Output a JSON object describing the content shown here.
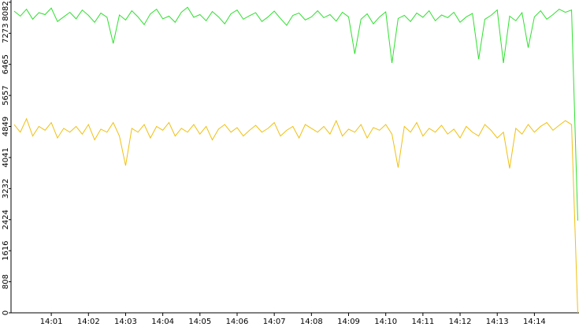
{
  "chart_data": {
    "type": "line",
    "x": [
      "14:00:00",
      "14:00:10",
      "14:00:20",
      "14:00:30",
      "14:00:40",
      "14:00:50",
      "14:01:00",
      "14:01:10",
      "14:01:20",
      "14:01:30",
      "14:01:40",
      "14:01:50",
      "14:02:00",
      "14:02:10",
      "14:02:20",
      "14:02:30",
      "14:02:40",
      "14:02:50",
      "14:03:00",
      "14:03:10",
      "14:03:20",
      "14:03:30",
      "14:03:40",
      "14:03:50",
      "14:04:00",
      "14:04:10",
      "14:04:20",
      "14:04:30",
      "14:04:40",
      "14:04:50",
      "14:05:00",
      "14:05:10",
      "14:05:20",
      "14:05:30",
      "14:05:40",
      "14:05:50",
      "14:06:00",
      "14:06:10",
      "14:06:20",
      "14:06:30",
      "14:06:40",
      "14:06:50",
      "14:07:00",
      "14:07:10",
      "14:07:20",
      "14:07:30",
      "14:07:40",
      "14:07:50",
      "14:08:00",
      "14:08:10",
      "14:08:20",
      "14:08:30",
      "14:08:40",
      "14:08:50",
      "14:09:00",
      "14:09:10",
      "14:09:20",
      "14:09:30",
      "14:09:40",
      "14:09:50",
      "14:10:00",
      "14:10:10",
      "14:10:20",
      "14:10:30",
      "14:10:40",
      "14:10:50",
      "14:11:00",
      "14:11:10",
      "14:11:20",
      "14:11:30",
      "14:11:40",
      "14:11:50",
      "14:12:00",
      "14:12:10",
      "14:12:20",
      "14:12:30",
      "14:12:40",
      "14:12:50",
      "14:13:00",
      "14:13:10",
      "14:13:20",
      "14:13:30",
      "14:13:40",
      "14:13:50",
      "14:14:00",
      "14:14:10",
      "14:14:20",
      "14:14:30",
      "14:14:40",
      "14:14:50",
      "14:15:00",
      "14:15:10"
    ],
    "series": [
      {
        "color": "#2ee02e",
        "values": [
          7850,
          7720,
          7900,
          7640,
          7810,
          7760,
          7930,
          7580,
          7700,
          7820,
          7650,
          7880,
          7740,
          7560,
          7800,
          7690,
          7010,
          7750,
          7620,
          7860,
          7700,
          7500,
          7780,
          7900,
          7650,
          7720,
          7560,
          7820,
          7950,
          7690,
          7760,
          7600,
          7840,
          7700,
          7520,
          7780,
          7880,
          7640,
          7730,
          7810,
          7580,
          7700,
          7850,
          7660,
          7480,
          7740,
          7800,
          7620,
          7700,
          7860,
          7680,
          7760,
          7590,
          7820,
          7700,
          6740,
          7640,
          7780,
          7520,
          7700,
          7830,
          6500,
          7660,
          7740,
          7580,
          7800,
          7690,
          7860,
          7600,
          7750,
          7680,
          7820,
          7560,
          7700,
          7790,
          6600,
          7640,
          7740,
          7880,
          6500,
          7720,
          7600,
          7810,
          6900,
          7700,
          7860,
          7640,
          7760,
          7900,
          7820,
          7880,
          2400
        ]
      },
      {
        "color": "#f0c010",
        "values": [
          4900,
          4700,
          5050,
          4600,
          4850,
          4750,
          4950,
          4550,
          4800,
          4700,
          4850,
          4650,
          4900,
          4500,
          4780,
          4700,
          4950,
          4600,
          3830,
          4800,
          4700,
          4900,
          4550,
          4850,
          4750,
          4950,
          4600,
          4800,
          4700,
          4900,
          4650,
          4850,
          4500,
          4780,
          4900,
          4700,
          4820,
          4600,
          4750,
          4880,
          4700,
          4800,
          4950,
          4600,
          4750,
          4850,
          4550,
          4900,
          4800,
          4700,
          4850,
          4650,
          5000,
          4600,
          4780,
          4700,
          4900,
          4550,
          4820,
          4750,
          4900,
          4650,
          3780,
          4850,
          4700,
          4950,
          4600,
          4800,
          4700,
          4880,
          4650,
          4780,
          4550,
          4850,
          4700,
          4600,
          4900,
          4750,
          4550,
          4700,
          3760,
          4800,
          4650,
          4900,
          4700,
          4850,
          4950,
          4750,
          4880,
          5000,
          4900,
          0
        ]
      }
    ],
    "xlim": [
      "13:59:55",
      "14:15:12"
    ],
    "xticks": [
      {
        "value": "14:01:00",
        "label": "14:01"
      },
      {
        "value": "14:02:00",
        "label": "14:02"
      },
      {
        "value": "14:03:00",
        "label": "14:03"
      },
      {
        "value": "14:04:00",
        "label": "14:04"
      },
      {
        "value": "14:05:00",
        "label": "14:05"
      },
      {
        "value": "14:06:00",
        "label": "14:06"
      },
      {
        "value": "14:07:00",
        "label": "14:07"
      },
      {
        "value": "14:08:00",
        "label": "14:08"
      },
      {
        "value": "14:09:00",
        "label": "14:09"
      },
      {
        "value": "14:10:00",
        "label": "14:10"
      },
      {
        "value": "14:11:00",
        "label": "14:11"
      },
      {
        "value": "14:12:00",
        "label": "14:12"
      },
      {
        "value": "14:13:00",
        "label": "14:13"
      },
      {
        "value": "14:14:00",
        "label": "14:14"
      }
    ],
    "ylim": [
      0,
      8140
    ],
    "yticks": [
      0,
      808,
      1616,
      2424,
      3232,
      4041,
      4849,
      5657,
      6465,
      7273,
      8082
    ]
  }
}
